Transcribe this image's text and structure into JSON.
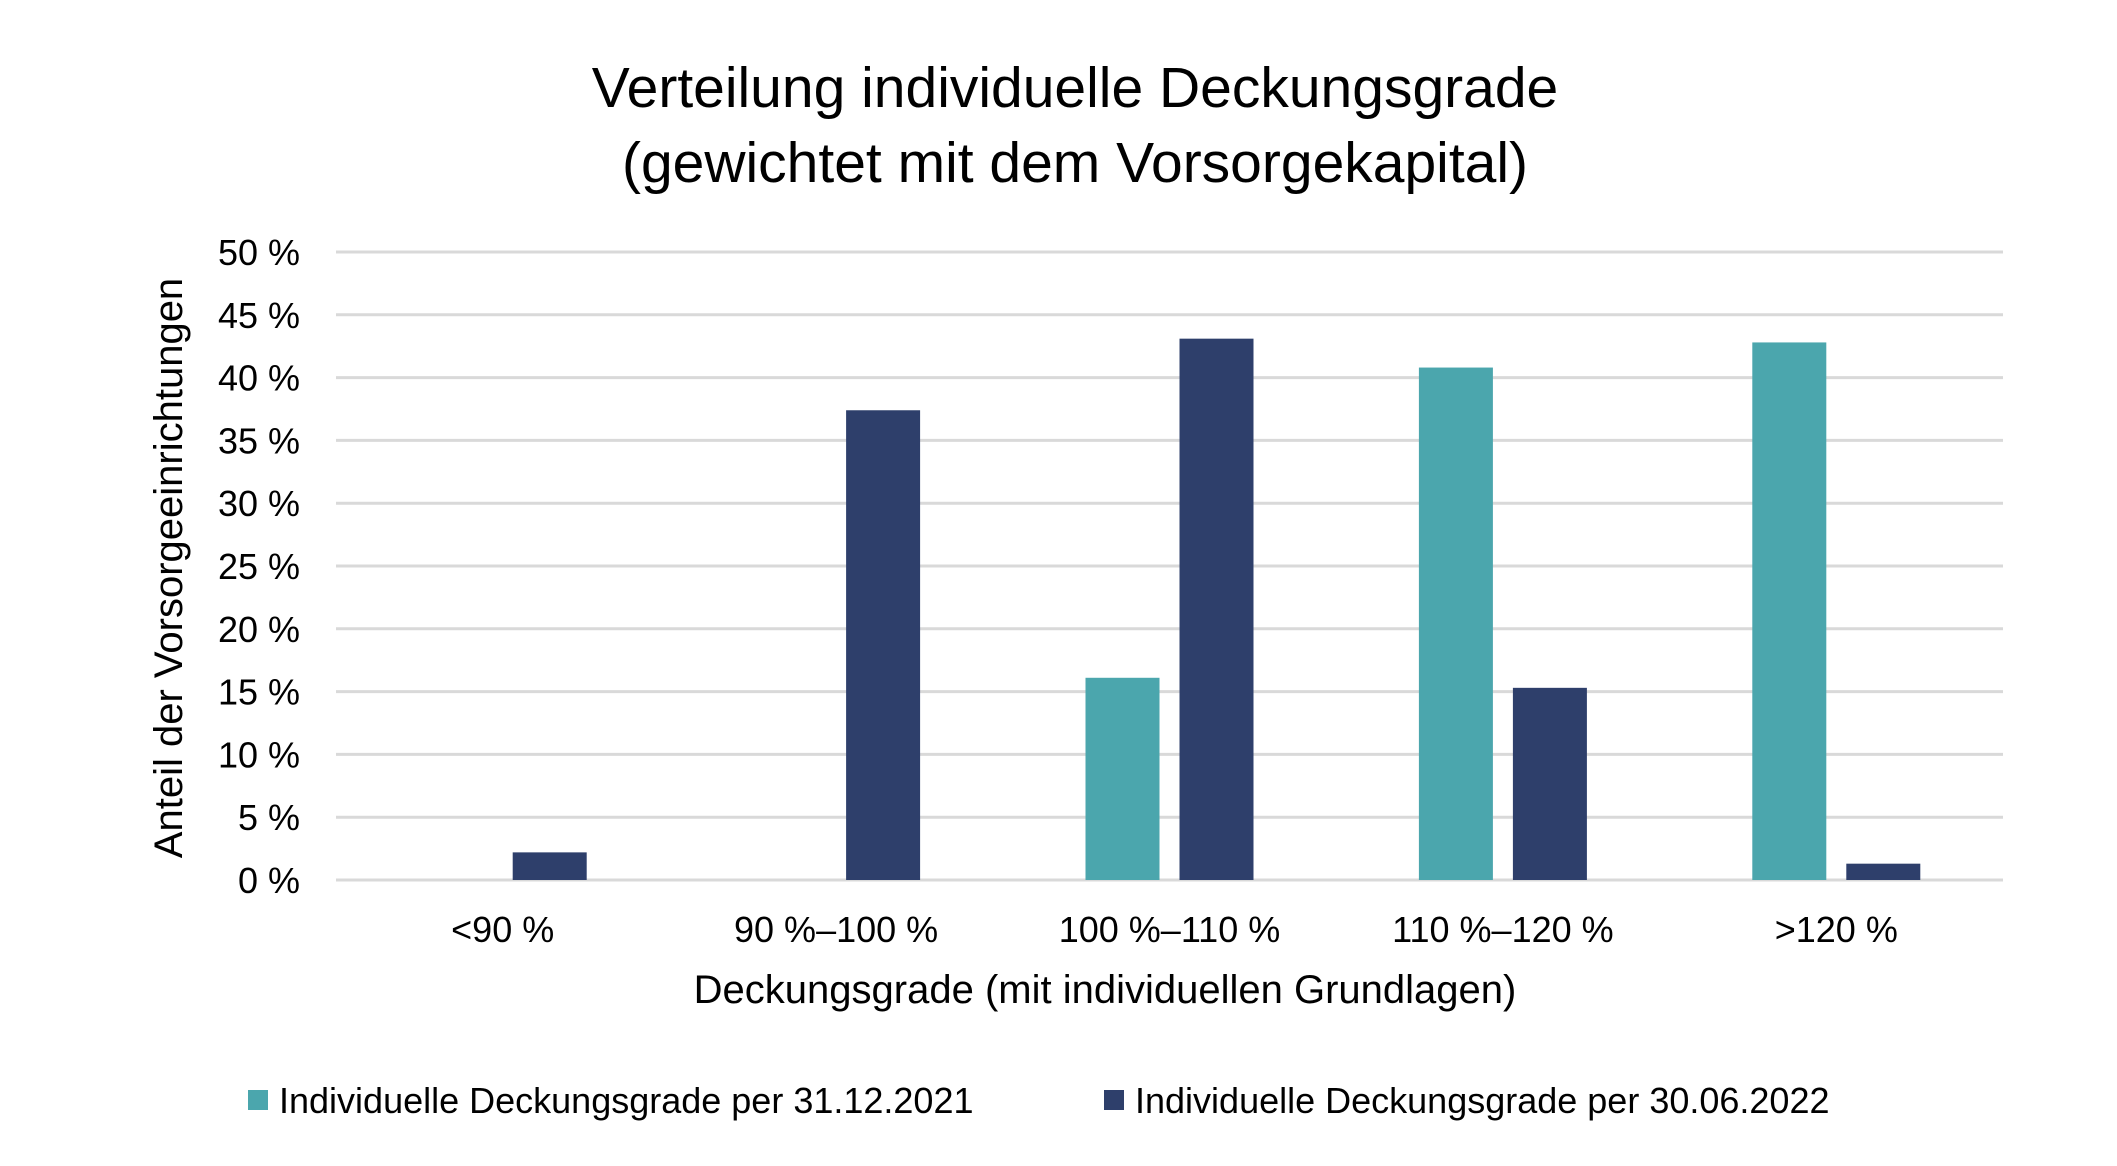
{
  "chart_data": {
    "type": "bar",
    "title": [
      "Verteilung individuelle Deckungsgrade",
      "(gewichtet mit dem Vorsorgekapital)"
    ],
    "xlabel": "Deckungsgrade (mit individuellen Grundlagen)",
    "ylabel": "Anteil der Vorsorgeeinrichtungen",
    "categories": [
      "<90 %",
      "90 %–100 %",
      "100 %–110 %",
      "110 %–120 %",
      ">120 %"
    ],
    "ylim": [
      0,
      50
    ],
    "yticks": [
      0,
      5,
      10,
      15,
      20,
      25,
      30,
      35,
      40,
      45,
      50
    ],
    "ytick_labels": [
      "0 %",
      "5 %",
      "10 %",
      "15 %",
      "20 %",
      "25 %",
      "30 %",
      "35 %",
      "40 %",
      "45 %",
      "50 %"
    ],
    "grid": true,
    "legend": "bottom",
    "series": [
      {
        "name": "Individuelle Deckungsgrade per 31.12.2021",
        "color": "#4BA6AD",
        "values": [
          0,
          0,
          16.1,
          40.8,
          42.8
        ]
      },
      {
        "name": "Individuelle Deckungsgrade per 30.06.2022",
        "color": "#2E3F6B",
        "values": [
          2.2,
          37.4,
          43.1,
          15.3,
          1.3
        ]
      }
    ]
  }
}
